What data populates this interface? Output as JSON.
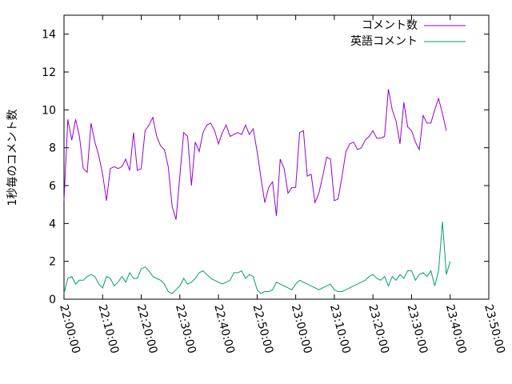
{
  "chart_data": {
    "type": "line",
    "title": "",
    "xlabel": "",
    "ylabel": "1秒毎のコメント数",
    "grid": false,
    "legend": "top-right",
    "xlim": [
      "22:00:00",
      "23:50:00"
    ],
    "ylim": [
      0,
      15
    ],
    "x_ticks": [
      "22:00:00",
      "22:10:00",
      "22:20:00",
      "22:30:00",
      "22:40:00",
      "22:50:00",
      "23:00:00",
      "23:10:00",
      "23:20:00",
      "23:30:00",
      "23:40:00",
      "23:50:00"
    ],
    "y_ticks": [
      0,
      2,
      4,
      6,
      8,
      10,
      12,
      14
    ],
    "x": [
      "22:00:00",
      "22:01:00",
      "22:02:00",
      "22:03:00",
      "22:04:00",
      "22:05:00",
      "22:06:00",
      "22:07:00",
      "22:08:00",
      "22:09:00",
      "22:10:00",
      "22:11:00",
      "22:12:00",
      "22:13:00",
      "22:14:00",
      "22:15:00",
      "22:16:00",
      "22:17:00",
      "22:18:00",
      "22:19:00",
      "22:20:00",
      "22:21:00",
      "22:22:00",
      "22:23:00",
      "22:24:00",
      "22:25:00",
      "22:26:00",
      "22:27:00",
      "22:28:00",
      "22:29:00",
      "22:30:00",
      "22:31:00",
      "22:32:00",
      "22:33:00",
      "22:34:00",
      "22:35:00",
      "22:36:00",
      "22:37:00",
      "22:38:00",
      "22:39:00",
      "22:40:00",
      "22:41:00",
      "22:42:00",
      "22:43:00",
      "22:44:00",
      "22:45:00",
      "22:46:00",
      "22:47:00",
      "22:48:00",
      "22:49:00",
      "22:50:00",
      "22:51:00",
      "22:52:00",
      "22:53:00",
      "22:54:00",
      "22:55:00",
      "22:56:00",
      "22:57:00",
      "22:58:00",
      "22:59:00",
      "23:00:00",
      "23:01:00",
      "23:02:00",
      "23:03:00",
      "23:04:00",
      "23:05:00",
      "23:06:00",
      "23:07:00",
      "23:08:00",
      "23:09:00",
      "23:10:00",
      "23:11:00",
      "23:12:00",
      "23:13:00",
      "23:14:00",
      "23:15:00",
      "23:16:00",
      "23:17:00",
      "23:18:00",
      "23:19:00",
      "23:20:00",
      "23:21:00",
      "23:22:00",
      "23:23:00",
      "23:24:00",
      "23:25:00",
      "23:26:00",
      "23:27:00",
      "23:28:00",
      "23:29:00",
      "23:30:00",
      "23:31:00",
      "23:32:00",
      "23:33:00",
      "23:34:00",
      "23:35:00",
      "23:36:00",
      "23:37:00",
      "23:38:00",
      "23:39:00",
      "23:40:00",
      "23:41:00"
    ],
    "series": [
      {
        "name": "コメント数",
        "color": "#9400d3",
        "values": [
          5.2,
          9.5,
          8.4,
          9.5,
          8.6,
          6.9,
          6.7,
          9.3,
          8.3,
          7.6,
          6.6,
          5.2,
          6.9,
          7.0,
          6.9,
          7.0,
          7.4,
          6.8,
          8.8,
          6.8,
          6.9,
          8.9,
          9.2,
          9.6,
          8.6,
          8.1,
          7.9,
          7.0,
          4.9,
          4.2,
          6.5,
          8.8,
          8.6,
          6.0,
          8.3,
          7.8,
          8.8,
          9.2,
          9.3,
          8.9,
          8.2,
          8.8,
          9.2,
          8.6,
          8.7,
          8.8,
          8.7,
          9.2,
          8.7,
          9.0,
          7.8,
          6.4,
          5.1,
          5.9,
          6.2,
          4.4,
          7.4,
          6.9,
          5.6,
          5.9,
          5.9,
          8.8,
          8.9,
          6.5,
          6.6,
          5.1,
          5.6,
          6.5,
          7.5,
          7.4,
          5.2,
          5.3,
          6.5,
          7.8,
          8.2,
          8.3,
          7.9,
          8.0,
          8.4,
          8.6,
          8.9,
          8.5,
          8.5,
          8.6,
          11.1,
          10.0,
          9.4,
          8.2,
          10.4,
          9.1,
          8.9,
          8.3,
          7.9,
          9.7,
          9.3,
          9.3,
          10.0,
          10.6,
          9.8,
          8.9,
          null,
          null
        ]
      },
      {
        "name": "英語コメント",
        "color": "#009e73",
        "values": [
          0.3,
          1.1,
          1.2,
          0.8,
          1.0,
          1.0,
          1.2,
          1.3,
          1.2,
          0.8,
          0.6,
          1.2,
          1.1,
          0.7,
          0.9,
          1.2,
          0.9,
          1.4,
          1.1,
          1.1,
          1.6,
          1.7,
          1.5,
          1.2,
          1.1,
          1.0,
          0.8,
          0.4,
          0.3,
          0.5,
          0.7,
          1.1,
          0.8,
          0.9,
          1.1,
          1.4,
          1.5,
          1.3,
          1.1,
          1.0,
          0.9,
          0.8,
          0.9,
          1.0,
          1.4,
          1.4,
          1.5,
          1.1,
          1.3,
          1.2,
          0.5,
          0.3,
          0.4,
          0.4,
          0.5,
          0.9,
          0.8,
          0.7,
          0.6,
          0.5,
          0.8,
          1.0,
          0.9,
          0.8,
          0.7,
          0.6,
          0.5,
          0.6,
          0.7,
          0.8,
          0.5,
          0.4,
          0.4,
          0.5,
          0.6,
          0.7,
          0.8,
          0.9,
          1.0,
          1.2,
          1.3,
          1.1,
          1.0,
          1.2,
          0.7,
          1.2,
          1.0,
          1.3,
          1.1,
          1.5,
          1.5,
          1.0,
          1.3,
          1.4,
          1.2,
          1.5,
          0.7,
          1.5,
          4.1,
          1.3,
          2.0,
          null
        ]
      }
    ]
  }
}
